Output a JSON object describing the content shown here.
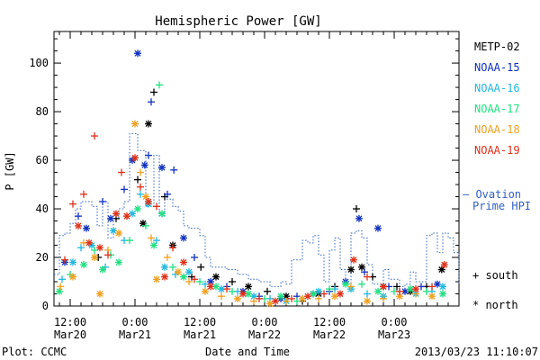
{
  "chart_data": {
    "type": "scatter",
    "title": "Hemispheric Power [GW]",
    "ylabel": "P [GW]",
    "xlabel": "Date and Time",
    "footer_left": "Plot: CCMC",
    "footer_right": "2013/03/23 11:10:07",
    "ylim": [
      0,
      113
    ],
    "yticks": [
      0,
      20,
      40,
      60,
      80,
      100
    ],
    "x_unit": "hours since 2013-03-20 00:00",
    "xlim": [
      9,
      84
    ],
    "xticks": [
      {
        "x": 12,
        "top": "12:00",
        "bottom": "Mar20"
      },
      {
        "x": 24,
        "top": "0:00",
        "bottom": "Mar21"
      },
      {
        "x": 36,
        "top": "12:00",
        "bottom": "Mar21"
      },
      {
        "x": 48,
        "top": "0:00",
        "bottom": "Mar22"
      },
      {
        "x": 60,
        "top": "12:00",
        "bottom": "Mar22"
      },
      {
        "x": 72,
        "top": "0:00",
        "bottom": "Mar23"
      }
    ],
    "symbols": [
      {
        "label": "+ south",
        "marker": "plus"
      },
      {
        "label": "* north",
        "marker": "star"
      }
    ],
    "series": [
      {
        "name": "METP-02",
        "color": "#000000",
        "marker": "mixed",
        "points": [
          [
            17.2,
            20,
            "+"
          ],
          [
            20.5,
            36,
            "+"
          ],
          [
            24.5,
            52,
            "+"
          ],
          [
            25.5,
            34,
            "*"
          ],
          [
            26.5,
            75,
            "*"
          ],
          [
            27.5,
            88,
            "+"
          ],
          [
            29.5,
            45,
            "+"
          ],
          [
            31,
            25,
            "*"
          ],
          [
            34.5,
            12,
            "+"
          ],
          [
            36.2,
            16,
            "+"
          ],
          [
            39,
            12,
            "*"
          ],
          [
            42,
            10,
            "+"
          ],
          [
            45,
            8,
            "*"
          ],
          [
            48.5,
            6,
            "+"
          ],
          [
            52,
            4,
            "*"
          ],
          [
            55,
            2,
            "+"
          ],
          [
            58,
            5,
            "*"
          ],
          [
            61,
            8,
            "+"
          ],
          [
            64,
            15,
            "*"
          ],
          [
            65,
            40,
            "+"
          ],
          [
            66,
            16,
            "*"
          ],
          [
            68,
            12,
            "+"
          ],
          [
            70,
            8,
            "*"
          ],
          [
            72.5,
            8,
            "+"
          ],
          [
            75,
            6,
            "*"
          ],
          [
            78,
            8,
            "+"
          ],
          [
            80.8,
            15,
            "*"
          ]
        ]
      },
      {
        "name": "NOAA-15",
        "color": "#1030c0",
        "marker": "mixed",
        "points": [
          [
            11,
            18,
            "*"
          ],
          [
            13.5,
            37,
            "+"
          ],
          [
            15,
            32,
            "*"
          ],
          [
            18,
            43,
            "+"
          ],
          [
            19.5,
            36,
            "*"
          ],
          [
            22,
            48,
            "+"
          ],
          [
            23.5,
            60,
            "*"
          ],
          [
            24.5,
            104,
            "*"
          ],
          [
            25.8,
            58,
            "*"
          ],
          [
            26.5,
            62,
            "+"
          ],
          [
            27,
            84,
            "+"
          ],
          [
            29,
            57,
            "*"
          ],
          [
            30,
            46,
            "+"
          ],
          [
            31.2,
            56,
            "+"
          ],
          [
            33,
            28,
            "*"
          ],
          [
            35,
            20,
            "+"
          ],
          [
            38,
            10,
            "*"
          ],
          [
            41,
            8,
            "+"
          ],
          [
            44,
            6,
            "*"
          ],
          [
            47,
            4,
            "+"
          ],
          [
            51,
            3,
            "*"
          ],
          [
            54,
            4,
            "+"
          ],
          [
            57,
            5,
            "*"
          ],
          [
            60,
            6,
            "+"
          ],
          [
            63,
            10,
            "*"
          ],
          [
            65.5,
            36,
            "*"
          ],
          [
            66.5,
            14,
            "+"
          ],
          [
            69,
            32,
            "*"
          ],
          [
            71,
            8,
            "+"
          ],
          [
            74,
            6,
            "*"
          ],
          [
            77,
            8,
            "+"
          ],
          [
            80,
            9,
            "*"
          ]
        ]
      },
      {
        "name": "NOAA-16",
        "color": "#20b8e0",
        "marker": "mixed",
        "points": [
          [
            10.5,
            11,
            "+"
          ],
          [
            12.5,
            18,
            "*"
          ],
          [
            14,
            24,
            "+"
          ],
          [
            16,
            25,
            "*"
          ],
          [
            18.5,
            16,
            "+"
          ],
          [
            20,
            31,
            "*"
          ],
          [
            22,
            27,
            "+"
          ],
          [
            23.5,
            38,
            "*"
          ],
          [
            25,
            46,
            "+"
          ],
          [
            26.5,
            42,
            "*"
          ],
          [
            28,
            27,
            "+"
          ],
          [
            29.5,
            16,
            "*"
          ],
          [
            31.5,
            13,
            "+"
          ],
          [
            34,
            14,
            "*"
          ],
          [
            37,
            9,
            "+"
          ],
          [
            40,
            7,
            "*"
          ],
          [
            43,
            6,
            "+"
          ],
          [
            46,
            4,
            "*"
          ],
          [
            49,
            3,
            "+"
          ],
          [
            52,
            2,
            "*"
          ],
          [
            55,
            3,
            "+"
          ],
          [
            58,
            6,
            "*"
          ],
          [
            61,
            7,
            "+"
          ],
          [
            64,
            7,
            "*"
          ],
          [
            67,
            5,
            "+"
          ],
          [
            70,
            4,
            "*"
          ],
          [
            73,
            6,
            "+"
          ],
          [
            76,
            5,
            "*"
          ],
          [
            79,
            6,
            "+"
          ],
          [
            81,
            8,
            "*"
          ]
        ]
      },
      {
        "name": "NOAA-17",
        "color": "#20e080",
        "marker": "mixed",
        "points": [
          [
            10,
            6,
            "*"
          ],
          [
            12,
            13,
            "+"
          ],
          [
            14.5,
            17,
            "*"
          ],
          [
            16.5,
            23,
            "+"
          ],
          [
            18,
            15,
            "*"
          ],
          [
            19.5,
            21,
            "+"
          ],
          [
            21,
            18,
            "*"
          ],
          [
            23,
            27,
            "+"
          ],
          [
            24.5,
            40,
            "*"
          ],
          [
            26,
            33,
            "+"
          ],
          [
            27.5,
            25,
            "*"
          ],
          [
            28.5,
            91,
            "+"
          ],
          [
            29,
            38,
            "*"
          ],
          [
            31,
            16,
            "+"
          ],
          [
            33,
            12,
            "*"
          ],
          [
            36,
            10,
            "+"
          ],
          [
            39,
            8,
            "*"
          ],
          [
            42,
            6,
            "+"
          ],
          [
            45,
            5,
            "*"
          ],
          [
            48,
            3,
            "+"
          ],
          [
            51,
            4,
            "*"
          ],
          [
            54,
            2,
            "+"
          ],
          [
            57,
            5,
            "*"
          ],
          [
            60,
            7,
            "+"
          ],
          [
            63,
            9,
            "*"
          ],
          [
            66,
            9,
            "+"
          ],
          [
            69,
            6,
            "*"
          ],
          [
            72,
            6,
            "+"
          ],
          [
            75,
            7,
            "*"
          ],
          [
            78,
            6,
            "+"
          ],
          [
            81,
            5,
            "*"
          ]
        ]
      },
      {
        "name": "NOAA-18",
        "color": "#f0a020",
        "marker": "mixed",
        "points": [
          [
            10.2,
            8,
            "+"
          ],
          [
            12.5,
            12,
            "*"
          ],
          [
            14.5,
            26,
            "+"
          ],
          [
            16.5,
            20,
            "*"
          ],
          [
            17.5,
            5,
            "*"
          ],
          [
            19,
            23,
            "+"
          ],
          [
            21,
            30,
            "*"
          ],
          [
            22.5,
            37,
            "+"
          ],
          [
            24,
            75,
            "*"
          ],
          [
            25,
            55,
            "+"
          ],
          [
            26,
            45,
            "*"
          ],
          [
            27,
            28,
            "+"
          ],
          [
            28,
            11,
            "*"
          ],
          [
            30,
            20,
            "+"
          ],
          [
            32,
            14,
            "*"
          ],
          [
            34,
            10,
            "+"
          ],
          [
            37,
            6,
            "*"
          ],
          [
            40,
            4,
            "+"
          ],
          [
            43,
            3,
            "*"
          ],
          [
            46,
            2,
            "+"
          ],
          [
            49,
            1,
            "*"
          ],
          [
            52,
            2,
            "+"
          ],
          [
            55,
            3,
            "*"
          ],
          [
            58,
            3,
            "+"
          ],
          [
            61,
            4,
            "*"
          ],
          [
            64,
            8,
            "+"
          ],
          [
            67,
            2,
            "*"
          ],
          [
            70,
            3,
            "+"
          ],
          [
            73,
            4,
            "*"
          ],
          [
            76,
            5,
            "+"
          ],
          [
            79,
            4,
            "*"
          ]
        ]
      },
      {
        "name": "NOAA-19",
        "color": "#e03018",
        "marker": "mixed",
        "points": [
          [
            11,
            19,
            "+"
          ],
          [
            12.5,
            42,
            "+"
          ],
          [
            13.5,
            33,
            "*"
          ],
          [
            14.5,
            46,
            "+"
          ],
          [
            15.5,
            26,
            "*"
          ],
          [
            16.5,
            70,
            "+"
          ],
          [
            17.5,
            24,
            "*"
          ],
          [
            19,
            21,
            "+"
          ],
          [
            20.5,
            38,
            "*"
          ],
          [
            21.5,
            55,
            "+"
          ],
          [
            22.5,
            37,
            "*"
          ],
          [
            24,
            61,
            "*"
          ],
          [
            25,
            49,
            "+"
          ],
          [
            26.5,
            43,
            "*"
          ],
          [
            28,
            41,
            "+"
          ],
          [
            29.5,
            12,
            "*"
          ],
          [
            31,
            24,
            "+"
          ],
          [
            33,
            18,
            "*"
          ],
          [
            35,
            11,
            "+"
          ],
          [
            38,
            8,
            "*"
          ],
          [
            41,
            7,
            "+"
          ],
          [
            44,
            5,
            "*"
          ],
          [
            47,
            3,
            "+"
          ],
          [
            50,
            2,
            "*"
          ],
          [
            53,
            3,
            "+"
          ],
          [
            56,
            4,
            "*"
          ],
          [
            59,
            5,
            "+"
          ],
          [
            62,
            5,
            "*"
          ],
          [
            64.5,
            19,
            "*"
          ],
          [
            67,
            12,
            "+"
          ],
          [
            70,
            8,
            "*"
          ],
          [
            73,
            6,
            "+"
          ],
          [
            76,
            7,
            "*"
          ],
          [
            79,
            8,
            "+"
          ],
          [
            81.3,
            17,
            "*"
          ]
        ]
      }
    ],
    "ovation": {
      "name": "— Ovation Prime HPI",
      "legend_line1": "— Ovation",
      "legend_line2": "Prime HPI",
      "color": "#3060c0",
      "steps": [
        [
          9,
          13
        ],
        [
          10,
          29
        ],
        [
          11,
          30
        ],
        [
          12,
          34
        ],
        [
          13,
          40
        ],
        [
          14,
          43
        ],
        [
          16,
          41
        ],
        [
          17,
          33
        ],
        [
          18,
          43
        ],
        [
          19,
          28
        ],
        [
          20,
          36
        ],
        [
          21,
          40
        ],
        [
          22,
          43
        ],
        [
          23,
          71
        ],
        [
          24.5,
          64
        ],
        [
          26,
          41
        ],
        [
          27.5,
          62
        ],
        [
          28.5,
          37
        ],
        [
          29.5,
          44
        ],
        [
          31,
          41
        ],
        [
          32,
          39
        ],
        [
          33,
          33
        ],
        [
          34,
          32
        ],
        [
          36,
          29
        ],
        [
          37,
          20
        ],
        [
          38,
          16
        ],
        [
          39,
          16
        ],
        [
          41,
          15
        ],
        [
          43,
          13
        ],
        [
          45,
          11
        ],
        [
          47,
          10
        ],
        [
          49,
          8
        ],
        [
          51,
          10
        ],
        [
          52,
          9
        ],
        [
          53,
          19
        ],
        [
          55,
          27
        ],
        [
          56,
          26
        ],
        [
          57,
          29
        ],
        [
          58,
          21
        ],
        [
          59,
          10
        ],
        [
          60,
          23
        ],
        [
          61,
          28
        ],
        [
          62,
          15
        ],
        [
          63,
          9
        ],
        [
          64,
          30
        ],
        [
          65,
          31
        ],
        [
          66,
          28
        ],
        [
          67,
          17
        ],
        [
          68,
          9
        ],
        [
          70,
          15
        ],
        [
          71,
          11
        ],
        [
          73,
          8
        ],
        [
          74,
          9
        ],
        [
          75,
          14
        ],
        [
          76,
          10
        ],
        [
          77,
          10
        ],
        [
          78,
          29
        ],
        [
          79,
          30
        ],
        [
          80,
          22
        ],
        [
          81,
          30
        ],
        [
          82,
          28
        ],
        [
          83,
          22
        ],
        [
          84,
          9
        ]
      ]
    }
  }
}
